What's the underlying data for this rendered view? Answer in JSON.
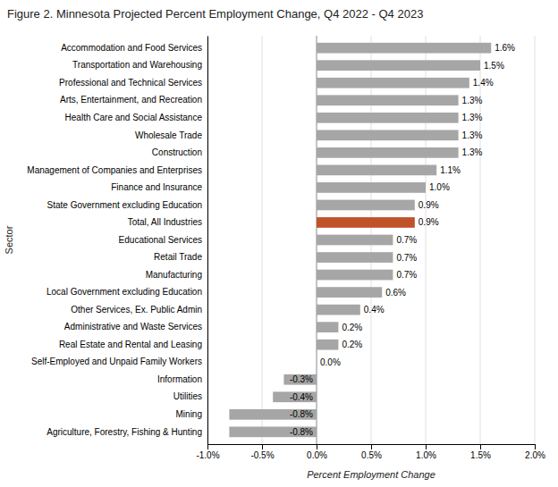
{
  "chart_data": {
    "type": "bar",
    "orientation": "horizontal",
    "title": "Figure 2. Minnesota Projected Percent Employment Change, Q4 2022 - Q4 2023",
    "xlabel": "Percent Employment Change",
    "ylabel": "Sector",
    "categories": [
      "Agriculture, Forestry, Fishing & Hunting",
      "Mining",
      "Utilities",
      "Information",
      "Self-Employed and Unpaid Family Workers",
      "Real Estate and Rental and Leasing",
      "Administrative and Waste Services",
      "Other Services, Ex. Public Admin",
      "Local Government excluding Education",
      "Manufacturing",
      "Retail Trade",
      "Educational Services",
      "Total, All Industries",
      "State Government excluding Education",
      "Finance and Insurance",
      "Management of Companies and Enterprises",
      "Construction",
      "Wholesale Trade",
      "Health Care and Social Assistance",
      "Arts, Entertainment, and Recreation",
      "Professional and Technical Services",
      "Transportation and Warehousing",
      "Accommodation and Food Services"
    ],
    "values": [
      -0.8,
      -0.8,
      -0.4,
      -0.3,
      0.0,
      0.2,
      0.2,
      0.4,
      0.6,
      0.7,
      0.7,
      0.7,
      0.9,
      0.9,
      1.0,
      1.1,
      1.3,
      1.3,
      1.3,
      1.3,
      1.4,
      1.5,
      1.6
    ],
    "value_labels": [
      "-0.8%",
      "-0.8%",
      "-0.4%",
      "-0.3%",
      "0.0%",
      "0.2%",
      "0.2%",
      "0.4%",
      "0.6%",
      "0.7%",
      "0.7%",
      "0.7%",
      "0.9%",
      "0.9%",
      "1.0%",
      "1.1%",
      "1.3%",
      "1.3%",
      "1.3%",
      "1.3%",
      "1.4%",
      "1.5%",
      "1.6%"
    ],
    "data_labels": true,
    "colors": [
      "#a6a6a6",
      "#a6a6a6",
      "#a6a6a6",
      "#a6a6a6",
      "#a6a6a6",
      "#a6a6a6",
      "#a6a6a6",
      "#a6a6a6",
      "#a6a6a6",
      "#a6a6a6",
      "#a6a6a6",
      "#a6a6a6",
      "#c0522a",
      "#a6a6a6",
      "#a6a6a6",
      "#a6a6a6",
      "#a6a6a6",
      "#a6a6a6",
      "#a6a6a6",
      "#a6a6a6",
      "#a6a6a6",
      "#a6a6a6",
      "#a6a6a6"
    ],
    "xlim": [
      -1.0,
      2.0
    ],
    "xticks": [
      {
        "value": -1.0,
        "label": "-1.0%"
      },
      {
        "value": -0.5,
        "label": "-0.5%"
      },
      {
        "value": 0.0,
        "label": "0.0%"
      },
      {
        "value": 0.5,
        "label": "0.5%"
      },
      {
        "value": 1.0,
        "label": "1.0%"
      },
      {
        "value": 1.5,
        "label": "1.5%"
      },
      {
        "value": 2.0,
        "label": "2.0%"
      }
    ],
    "grid": true
  }
}
